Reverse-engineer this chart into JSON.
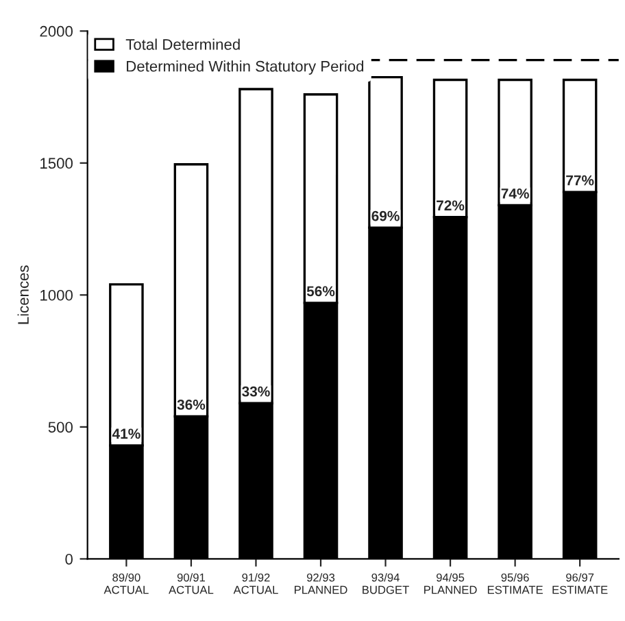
{
  "chart_data": {
    "type": "bar",
    "stacked": true,
    "ylabel": "Licences",
    "categories": [
      "89/90\nACTUAL",
      "90/91\nACTUAL",
      "91/92\nACTUAL",
      "92/93\nPLANNED",
      "93/94\nBUDGET",
      "94/95\nPLANNED",
      "95/96\nESTIMATE",
      "96/97\nESTIMATE"
    ],
    "series": [
      {
        "name": "Determined Within Statutory Period",
        "color": "#000000",
        "values": [
          430,
          540,
          590,
          970,
          1255,
          1295,
          1340,
          1390
        ]
      },
      {
        "name": "Total Determined",
        "color": "#ffffff",
        "values": [
          610,
          955,
          1190,
          790,
          570,
          520,
          475,
          425
        ]
      }
    ],
    "ylim": [
      0,
      2000
    ],
    "yticks": [
      0,
      500,
      1000,
      1500,
      2000
    ],
    "ref_lines": [
      {
        "axis": "y",
        "value": 1890,
        "color": "#000000",
        "line_style": "dashed"
      }
    ],
    "annotations": [
      {
        "text": "41%",
        "x": "89/90\nACTUAL",
        "y": 430
      },
      {
        "text": "36%",
        "x": "90/91\nACTUAL",
        "y": 540
      },
      {
        "text": "33%",
        "x": "91/92\nACTUAL",
        "y": 590
      },
      {
        "text": "56%",
        "x": "92/93\nPLANNED",
        "y": 970
      },
      {
        "text": "69%",
        "x": "93/94\nBUDGET",
        "y": 1255
      },
      {
        "text": "72%",
        "x": "94/95\nPLANNED",
        "y": 1295
      },
      {
        "text": "74%",
        "x": "95/96\nESTIMATE",
        "y": 1340
      },
      {
        "text": "77%",
        "x": "96/97\nESTIMATE",
        "y": 1390
      }
    ],
    "legend": "top left",
    "grid": false
  }
}
